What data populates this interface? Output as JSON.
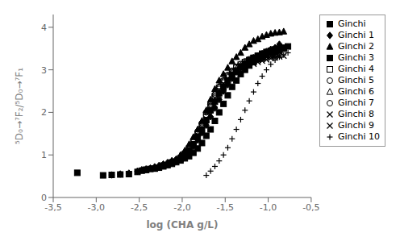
{
  "chart_data": {
    "type": "scatter",
    "title": "",
    "xlabel": "log (CHA g/L)",
    "ylabel": "⁵D₀→⁷F₂/⁵D₀→⁷F₁",
    "xlim": [
      -3.5,
      -0.5
    ],
    "ylim": [
      0,
      4.3
    ],
    "xticks": [
      {
        "value": -3.5,
        "label": "-3,5"
      },
      {
        "value": -3.0,
        "label": "-3,0"
      },
      {
        "value": -2.5,
        "label": "-2,5"
      },
      {
        "value": -2.0,
        "label": "-2,0"
      },
      {
        "value": -1.5,
        "label": "-1,5"
      },
      {
        "value": -1.0,
        "label": "-1,0"
      },
      {
        "value": -0.5,
        "label": "-0,5"
      }
    ],
    "yticks": [
      0,
      1,
      2,
      3,
      4
    ],
    "grid": false,
    "legend": "right",
    "series": [
      {
        "name": "Ginchi",
        "marker": "square",
        "color": "#000000",
        "x": [
          -3.22,
          -2.92,
          -2.82,
          -2.72,
          -2.62,
          -2.52,
          -2.47,
          -2.42,
          -2.37,
          -2.32,
          -2.27,
          -2.22,
          -2.17,
          -2.12,
          -2.07,
          -2.02,
          -1.97,
          -1.92,
          -1.87,
          -1.82,
          -1.77,
          -1.72,
          -1.67,
          -1.62,
          -1.57,
          -1.52,
          -1.47,
          -1.42,
          -1.37,
          -1.32,
          -1.27,
          -1.22,
          -1.17,
          -1.12,
          -1.07,
          -1.02,
          -0.97,
          -0.92,
          -0.87,
          -0.82,
          -0.77
        ],
        "y": [
          0.58,
          0.52,
          0.53,
          0.54,
          0.55,
          0.6,
          0.63,
          0.65,
          0.67,
          0.68,
          0.7,
          0.73,
          0.76,
          0.79,
          0.83,
          0.87,
          0.92,
          0.97,
          1.05,
          1.15,
          1.28,
          1.45,
          1.6,
          1.8,
          2.0,
          2.2,
          2.4,
          2.6,
          2.75,
          2.9,
          3.0,
          3.1,
          3.18,
          3.25,
          3.3,
          3.35,
          3.4,
          3.42,
          3.45,
          3.5,
          3.55
        ]
      },
      {
        "name": "Ginchi 1",
        "marker": "diamond",
        "color": "#000000",
        "x": [
          -2.82,
          -2.72,
          -2.62,
          -2.52,
          -2.47,
          -2.42,
          -2.37,
          -2.32,
          -2.27,
          -2.22,
          -2.17,
          -2.12,
          -2.07,
          -2.02,
          -1.97,
          -1.92,
          -1.87,
          -1.82,
          -1.77,
          -1.72,
          -1.67,
          -1.62,
          -1.57,
          -1.52,
          -1.47,
          -1.42,
          -1.37,
          -1.32,
          -1.27,
          -1.22,
          -1.17,
          -1.12,
          -1.07,
          -1.02,
          -0.97,
          -0.92,
          -0.87
        ],
        "y": [
          0.53,
          0.55,
          0.57,
          0.62,
          0.65,
          0.67,
          0.69,
          0.72,
          0.75,
          0.78,
          0.82,
          0.86,
          0.9,
          0.96,
          1.02,
          1.1,
          1.2,
          1.35,
          1.52,
          1.7,
          1.9,
          2.1,
          2.3,
          2.5,
          2.65,
          2.8,
          2.95,
          3.05,
          3.15,
          3.22,
          3.28,
          3.33,
          3.38,
          3.43,
          3.48,
          3.52,
          3.6
        ]
      },
      {
        "name": "Ginchi 2",
        "marker": "triangle",
        "color": "#000000",
        "x": [
          -2.22,
          -2.12,
          -2.02,
          -1.97,
          -1.92,
          -1.87,
          -1.82,
          -1.77,
          -1.72,
          -1.67,
          -1.62,
          -1.57,
          -1.52,
          -1.47,
          -1.42,
          -1.37,
          -1.32,
          -1.27,
          -1.22,
          -1.17,
          -1.12,
          -1.07,
          -1.02,
          -0.97,
          -0.92,
          -0.87,
          -0.82
        ],
        "y": [
          0.78,
          0.86,
          1.0,
          1.1,
          1.25,
          1.42,
          1.6,
          1.8,
          2.05,
          2.3,
          2.55,
          2.75,
          2.9,
          3.05,
          3.2,
          3.3,
          3.4,
          3.52,
          3.6,
          3.68,
          3.72,
          3.78,
          3.82,
          3.85,
          3.87,
          3.88,
          3.9
        ]
      },
      {
        "name": "Ginchi 3",
        "marker": "square",
        "color": "#000000",
        "x": [
          -2.42,
          -2.32,
          -2.22,
          -2.12,
          -2.02,
          -1.97,
          -1.92,
          -1.87,
          -1.82,
          -1.77,
          -1.72,
          -1.67,
          -1.62,
          -1.57,
          -1.52,
          -1.47,
          -1.42,
          -1.37,
          -1.32,
          -1.27,
          -1.22,
          -1.17,
          -1.12,
          -1.07,
          -1.02,
          -0.97,
          -0.92,
          -0.87,
          -0.82
        ],
        "y": [
          0.65,
          0.68,
          0.75,
          0.82,
          0.92,
          1.0,
          1.1,
          1.25,
          1.42,
          1.6,
          1.82,
          2.05,
          2.25,
          2.45,
          2.6,
          2.75,
          2.88,
          2.98,
          3.08,
          3.15,
          3.22,
          3.28,
          3.33,
          3.38,
          3.42,
          3.45,
          3.48,
          3.5,
          3.52
        ]
      },
      {
        "name": "Ginchi 4",
        "marker": "square_open",
        "color": "#000000",
        "x": [
          -2.12,
          -2.02,
          -1.97,
          -1.92,
          -1.87,
          -1.82,
          -1.77,
          -1.72,
          -1.67,
          -1.62,
          -1.57,
          -1.52,
          -1.47,
          -1.42,
          -1.37,
          -1.32,
          -1.27,
          -1.22,
          -1.17,
          -1.12,
          -1.07,
          -1.02,
          -0.97,
          -0.92,
          -0.87,
          -0.82
        ],
        "y": [
          0.82,
          0.92,
          1.02,
          1.15,
          1.3,
          1.5,
          1.7,
          1.95,
          2.15,
          2.38,
          2.58,
          2.72,
          2.85,
          2.95,
          3.05,
          3.12,
          3.18,
          3.23,
          3.28,
          3.32,
          3.36,
          3.4,
          3.43,
          3.45,
          3.47,
          3.5
        ]
      },
      {
        "name": "Ginchi 5",
        "marker": "circle_open",
        "color": "#000000",
        "x": [
          -2.02,
          -1.97,
          -1.92,
          -1.87,
          -1.82,
          -1.77,
          -1.72,
          -1.67,
          -1.62,
          -1.57,
          -1.52,
          -1.47,
          -1.42,
          -1.37,
          -1.32,
          -1.27,
          -1.22,
          -1.17,
          -1.12,
          -1.07,
          -1.02,
          -0.97,
          -0.92
        ],
        "y": [
          0.92,
          1.05,
          1.18,
          1.35,
          1.55,
          1.75,
          2.0,
          2.22,
          2.42,
          2.6,
          2.75,
          2.88,
          2.98,
          3.07,
          3.14,
          3.2,
          3.25,
          3.29,
          3.33,
          3.36,
          3.39,
          3.41,
          3.43
        ]
      },
      {
        "name": "Ginchi 6",
        "marker": "triangle_open",
        "color": "#000000",
        "x": [
          -1.97,
          -1.92,
          -1.87,
          -1.82,
          -1.77,
          -1.72,
          -1.67,
          -1.62,
          -1.57,
          -1.52,
          -1.47,
          -1.42,
          -1.37,
          -1.32,
          -1.27,
          -1.22,
          -1.17,
          -1.12,
          -1.07,
          -1.02,
          -0.97,
          -0.92
        ],
        "y": [
          1.05,
          1.18,
          1.35,
          1.55,
          1.78,
          2.02,
          2.25,
          2.45,
          2.62,
          2.75,
          2.86,
          2.95,
          3.03,
          3.1,
          3.15,
          3.2,
          3.24,
          3.28,
          3.31,
          3.34,
          3.36,
          3.38
        ]
      },
      {
        "name": "Ginchi 7",
        "marker": "circle_open",
        "color": "#000000",
        "x": [
          -1.87,
          -1.82,
          -1.77,
          -1.72,
          -1.67,
          -1.62,
          -1.57,
          -1.52,
          -1.47,
          -1.42,
          -1.37,
          -1.32,
          -1.27,
          -1.22,
          -1.17,
          -1.12,
          -1.07,
          -1.02,
          -0.97,
          -0.92
        ],
        "y": [
          1.25,
          1.45,
          1.68,
          1.92,
          2.15,
          2.36,
          2.55,
          2.7,
          2.82,
          2.91,
          2.99,
          3.06,
          3.12,
          3.17,
          3.21,
          3.24,
          3.27,
          3.3,
          3.32,
          3.34
        ]
      },
      {
        "name": "Ginchi 8",
        "marker": "x",
        "color": "#000000",
        "x": [
          -1.82,
          -1.77,
          -1.72,
          -1.67,
          -1.62,
          -1.57,
          -1.52,
          -1.47,
          -1.42,
          -1.37,
          -1.32,
          -1.27,
          -1.22,
          -1.17,
          -1.12,
          -1.07,
          -1.02,
          -0.97,
          -0.92,
          -0.87
        ],
        "y": [
          1.42,
          1.62,
          1.85,
          2.1,
          2.33,
          2.52,
          2.68,
          2.8,
          2.9,
          2.98,
          3.05,
          3.11,
          3.16,
          3.2,
          3.24,
          3.27,
          3.3,
          3.32,
          3.33,
          3.35
        ]
      },
      {
        "name": "Ginchi 9",
        "marker": "x",
        "color": "#000000",
        "x": [
          -1.72,
          -1.67,
          -1.62,
          -1.57,
          -1.52,
          -1.47,
          -1.42,
          -1.37,
          -1.32,
          -1.27,
          -1.22,
          -1.17,
          -1.12,
          -1.07,
          -1.02,
          -0.97,
          -0.92,
          -0.87,
          -0.82
        ],
        "y": [
          1.7,
          1.95,
          2.18,
          2.4,
          2.58,
          2.72,
          2.83,
          2.92,
          2.99,
          3.05,
          3.1,
          3.14,
          3.18,
          3.21,
          3.24,
          3.27,
          3.29,
          3.31,
          3.33
        ]
      },
      {
        "name": "Ginchi 10",
        "marker": "plus",
        "color": "#000000",
        "x": [
          -1.72,
          -1.67,
          -1.62,
          -1.57,
          -1.52,
          -1.47,
          -1.42,
          -1.37,
          -1.32,
          -1.27,
          -1.22,
          -1.17,
          -1.12,
          -1.07,
          -1.02,
          -0.97,
          -0.92,
          -0.87,
          -0.82,
          -0.77
        ],
        "y": [
          0.52,
          0.62,
          0.73,
          0.86,
          1.0,
          1.17,
          1.38,
          1.6,
          1.83,
          2.05,
          2.27,
          2.48,
          2.68,
          2.85,
          3.0,
          3.13,
          3.23,
          3.3,
          3.35,
          3.4
        ]
      }
    ]
  }
}
